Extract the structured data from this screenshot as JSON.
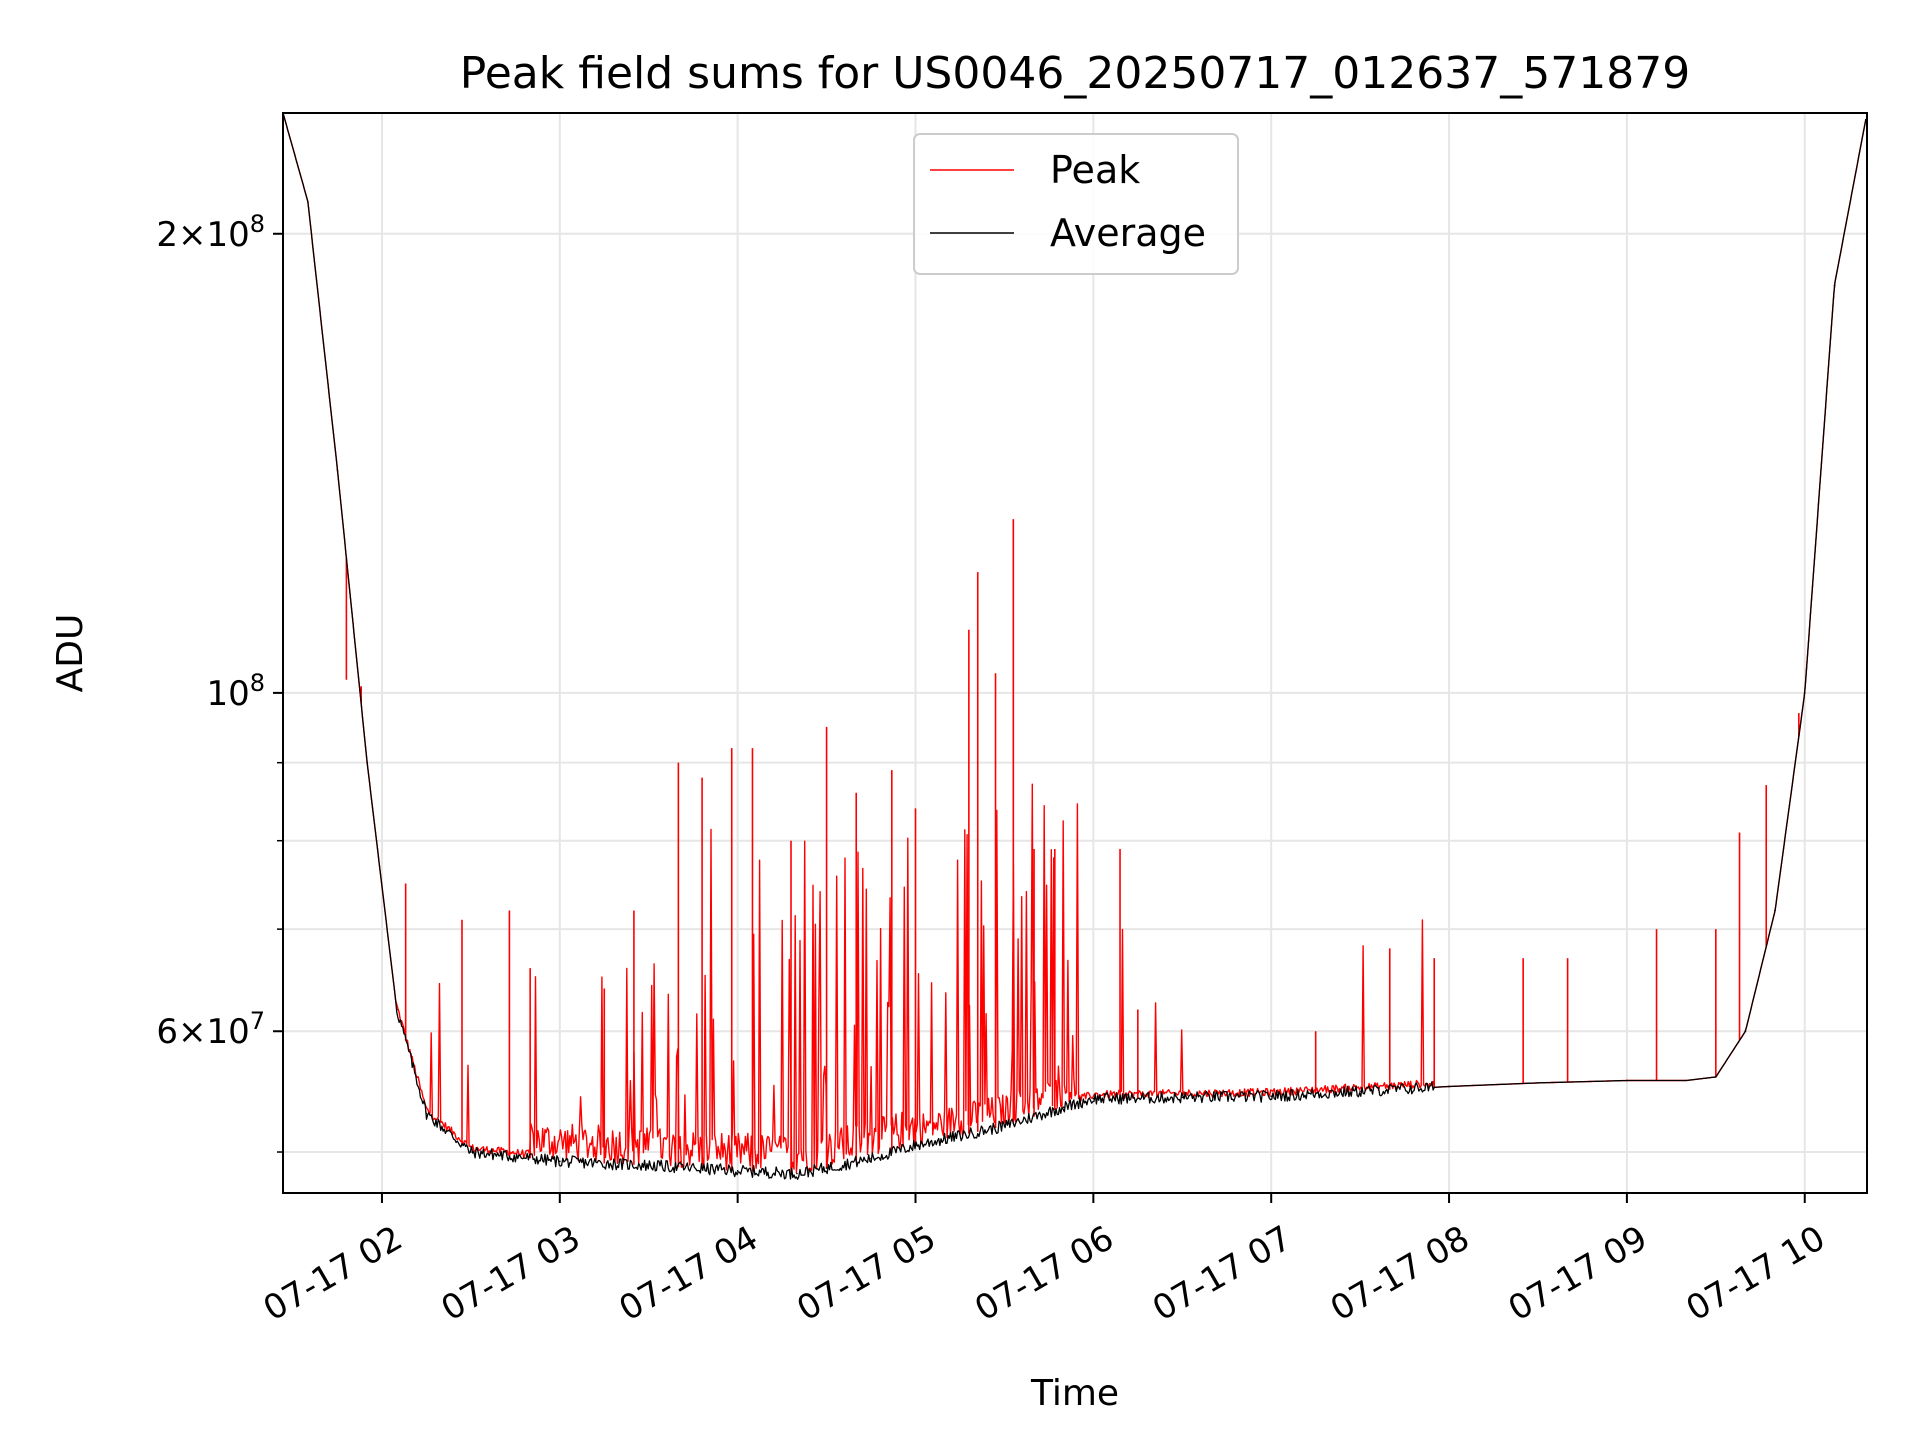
{
  "chart_data": {
    "type": "line",
    "title": "Peak field sums for US0046_20250717_012637_571879",
    "xlabel": "Time",
    "ylabel": "ADU",
    "x_scale": "time",
    "y_scale": "log",
    "xlim": [
      "2025-07-17 01:26:37",
      "2025-07-17 10:21:00"
    ],
    "ylim": [
      47000000,
      240000000
    ],
    "grid": true,
    "legend_position": "upper center",
    "x_ticks": [
      "07-17 02",
      "07-17 03",
      "07-17 04",
      "07-17 05",
      "07-17 06",
      "07-17 07",
      "07-17 08",
      "07-17 09",
      "07-17 10"
    ],
    "y_ticks_major": [
      {
        "value": 60000000,
        "label_mantissa": "6",
        "label_times": "×",
        "label_base": "10",
        "label_exp": "7"
      },
      {
        "value": 100000000,
        "label_mantissa": "",
        "label_times": "",
        "label_base": "10",
        "label_exp": "8"
      },
      {
        "value": 200000000,
        "label_mantissa": "2",
        "label_times": "×",
        "label_base": "10",
        "label_exp": "8"
      }
    ],
    "legend": [
      {
        "name": "Peak",
        "color": "#ff0000"
      },
      {
        "name": "Average",
        "color": "#000000"
      }
    ],
    "series": [
      {
        "name": "Average",
        "color": "#000000",
        "x": [
          "2025-07-17 01:26:37",
          "2025-07-17 01:35",
          "2025-07-17 01:45",
          "2025-07-17 01:55",
          "2025-07-17 02:05",
          "2025-07-17 02:15",
          "2025-07-17 02:30",
          "2025-07-17 03:00",
          "2025-07-17 03:30",
          "2025-07-17 04:00",
          "2025-07-17 04:20",
          "2025-07-17 04:30",
          "2025-07-17 04:45",
          "2025-07-17 05:00",
          "2025-07-17 05:30",
          "2025-07-17 05:50",
          "2025-07-17 06:00",
          "2025-07-17 06:30",
          "2025-07-17 07:00",
          "2025-07-17 07:30",
          "2025-07-17 08:00",
          "2025-07-17 08:30",
          "2025-07-17 09:00",
          "2025-07-17 09:20",
          "2025-07-17 09:30",
          "2025-07-17 09:40",
          "2025-07-17 09:50",
          "2025-07-17 10:00",
          "2025-07-17 10:10",
          "2025-07-17 10:21"
        ],
        "y": [
          240000000,
          210000000,
          140000000,
          90000000,
          62000000,
          53000000,
          50000000,
          49300000,
          49000000,
          48600000,
          48400000,
          48800000,
          49500000,
          50500000,
          52000000,
          53500000,
          54200000,
          54300000,
          54400000,
          54800000,
          55200000,
          55500000,
          55700000,
          55700000,
          56000000,
          60000000,
          72000000,
          100000000,
          185000000,
          240000000
        ]
      },
      {
        "name": "Peak",
        "color": "#ff0000",
        "x": [
          "2025-07-17 01:48",
          "2025-07-17 01:53",
          "2025-07-17 02:08",
          "2025-07-17 02:27",
          "2025-07-17 02:43",
          "2025-07-17 02:50",
          "2025-07-17 03:15",
          "2025-07-17 03:25",
          "2025-07-17 03:40",
          "2025-07-17 03:48",
          "2025-07-17 03:58",
          "2025-07-17 04:05",
          "2025-07-17 04:18",
          "2025-07-17 04:30",
          "2025-07-17 04:40",
          "2025-07-17 04:52",
          "2025-07-17 05:00",
          "2025-07-17 05:18",
          "2025-07-17 05:21",
          "2025-07-17 05:27",
          "2025-07-17 05:33",
          "2025-07-17 05:40",
          "2025-07-17 05:47",
          "2025-07-17 06:09",
          "2025-07-17 06:15",
          "2025-07-17 07:15",
          "2025-07-17 07:40",
          "2025-07-17 07:55",
          "2025-07-17 08:25",
          "2025-07-17 08:40",
          "2025-07-17 09:10",
          "2025-07-17 09:30",
          "2025-07-17 09:38",
          "2025-07-17 09:47",
          "2025-07-17 09:58"
        ],
        "y": [
          102000000,
          101000000,
          75000000,
          71000000,
          72000000,
          66000000,
          64000000,
          72000000,
          90000000,
          88000000,
          92000000,
          92000000,
          80000000,
          95000000,
          86000000,
          89000000,
          84000000,
          110000000,
          120000000,
          103000000,
          130000000,
          79000000,
          79000000,
          79000000,
          62000000,
          60000000,
          68000000,
          67000000,
          67000000,
          67000000,
          70000000,
          70000000,
          81000000,
          87000000,
          97000000
        ]
      }
    ]
  }
}
